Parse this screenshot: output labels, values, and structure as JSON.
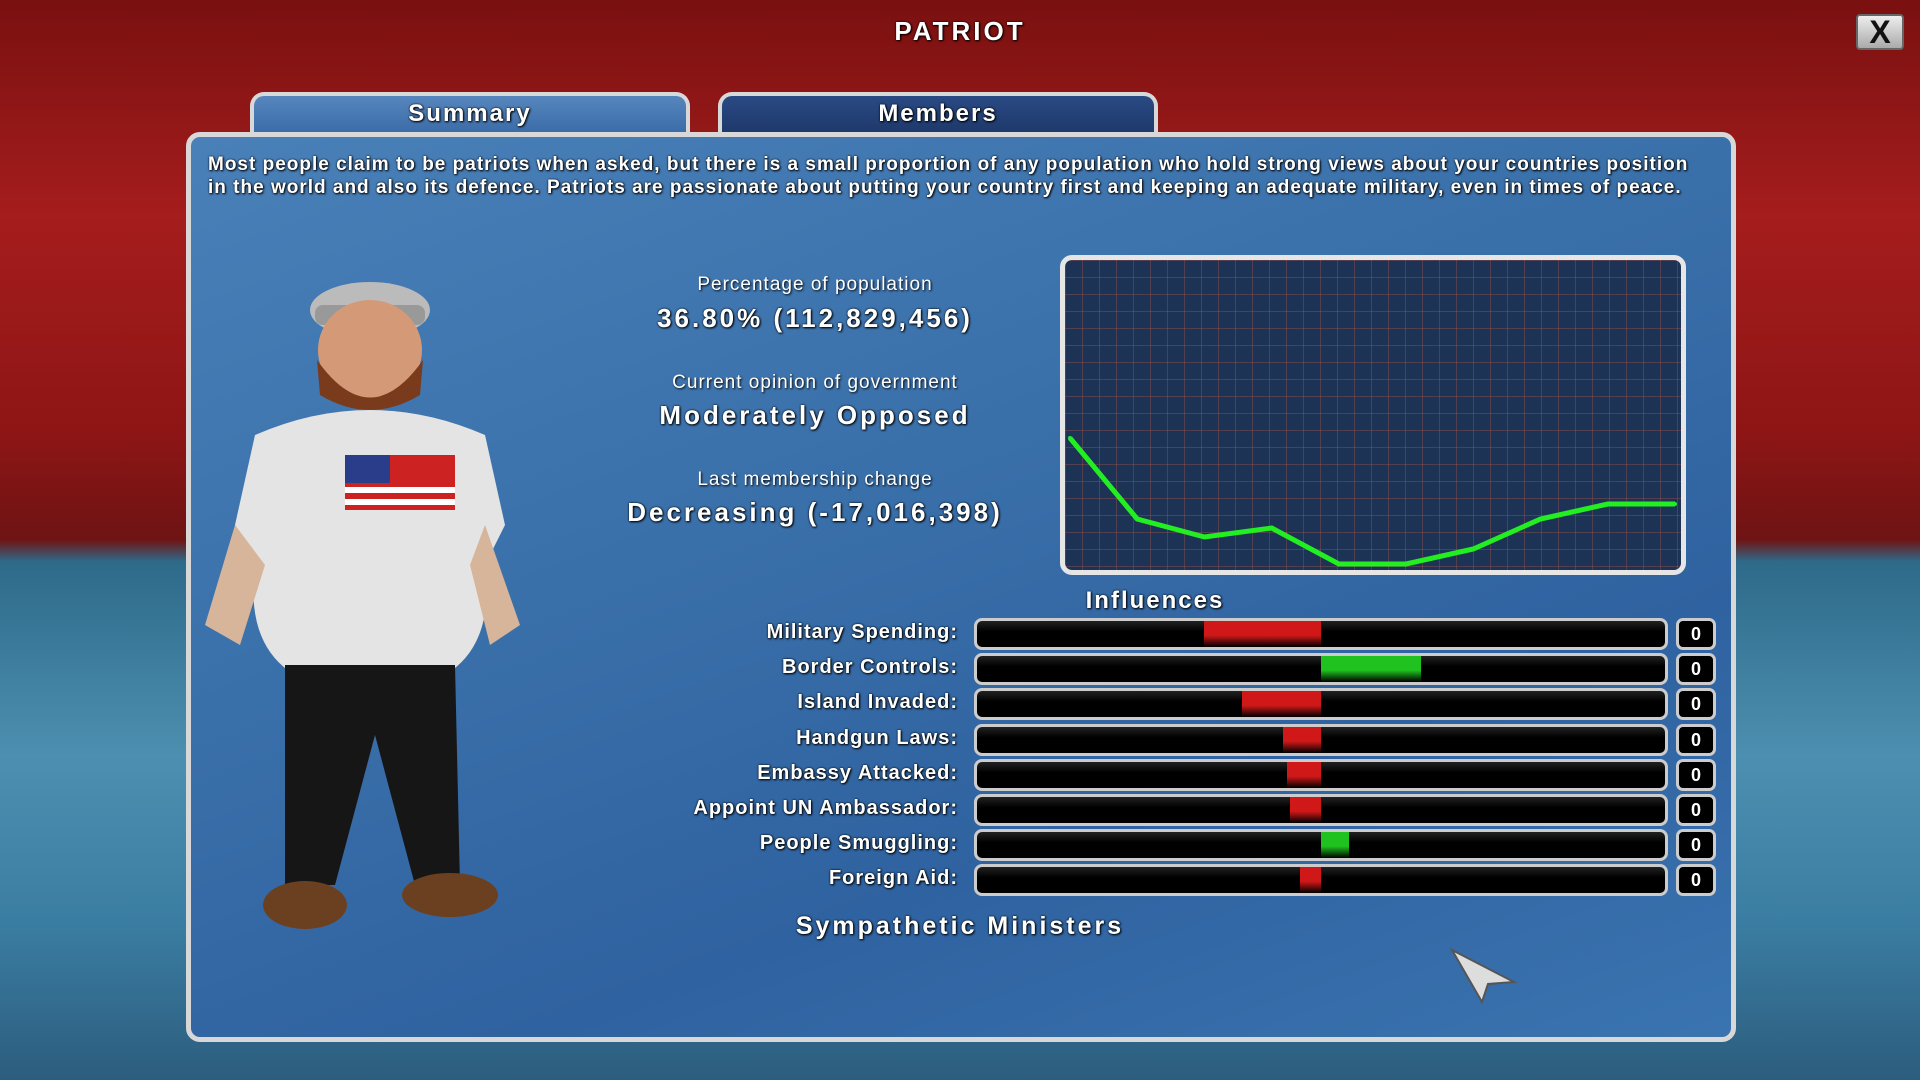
{
  "window": {
    "title": "PATRIOT",
    "close_label": "X"
  },
  "tabs": [
    {
      "label": "Summary",
      "active": true
    },
    {
      "label": "Members",
      "active": false
    }
  ],
  "description": "Most people claim to be patriots when asked, but there is a small proportion of any population who hold strong views about your countries position in the world and also its defence. Patriots are passionate about putting your country first and keeping an adequate military, even in times of peace.",
  "stats": {
    "population_label": "Percentage of population",
    "population_value": "36.80% (112,829,456)",
    "opinion_label": "Current opinion of government",
    "opinion_value": "Moderately Opposed",
    "change_label": "Last membership change",
    "change_value": "Decreasing (-17,016,398)"
  },
  "chart_data": {
    "type": "line",
    "grid": true,
    "line_color": "#22ee22",
    "ylim": [
      0,
      100
    ],
    "values": [
      42,
      15,
      9,
      12,
      0,
      0,
      5,
      15,
      20,
      20
    ]
  },
  "influences": {
    "title": "Influences",
    "positive_color": "#1fc21f",
    "negative_color": "#d01818",
    "items": [
      {
        "label": "Military Spending:",
        "value": -0.34,
        "count": "0"
      },
      {
        "label": "Border Controls:",
        "value": 0.29,
        "count": "0"
      },
      {
        "label": "Island Invaded:",
        "value": -0.23,
        "count": "0"
      },
      {
        "label": "Handgun Laws:",
        "value": -0.11,
        "count": "0"
      },
      {
        "label": "Embassy Attacked:",
        "value": -0.1,
        "count": "0"
      },
      {
        "label": "Appoint UN Ambassador:",
        "value": -0.09,
        "count": "0"
      },
      {
        "label": "People Smuggling:",
        "value": 0.08,
        "count": "0"
      },
      {
        "label": "Foreign Aid:",
        "value": -0.06,
        "count": "0"
      }
    ]
  },
  "ministers": {
    "title": "Sympathetic Ministers"
  }
}
